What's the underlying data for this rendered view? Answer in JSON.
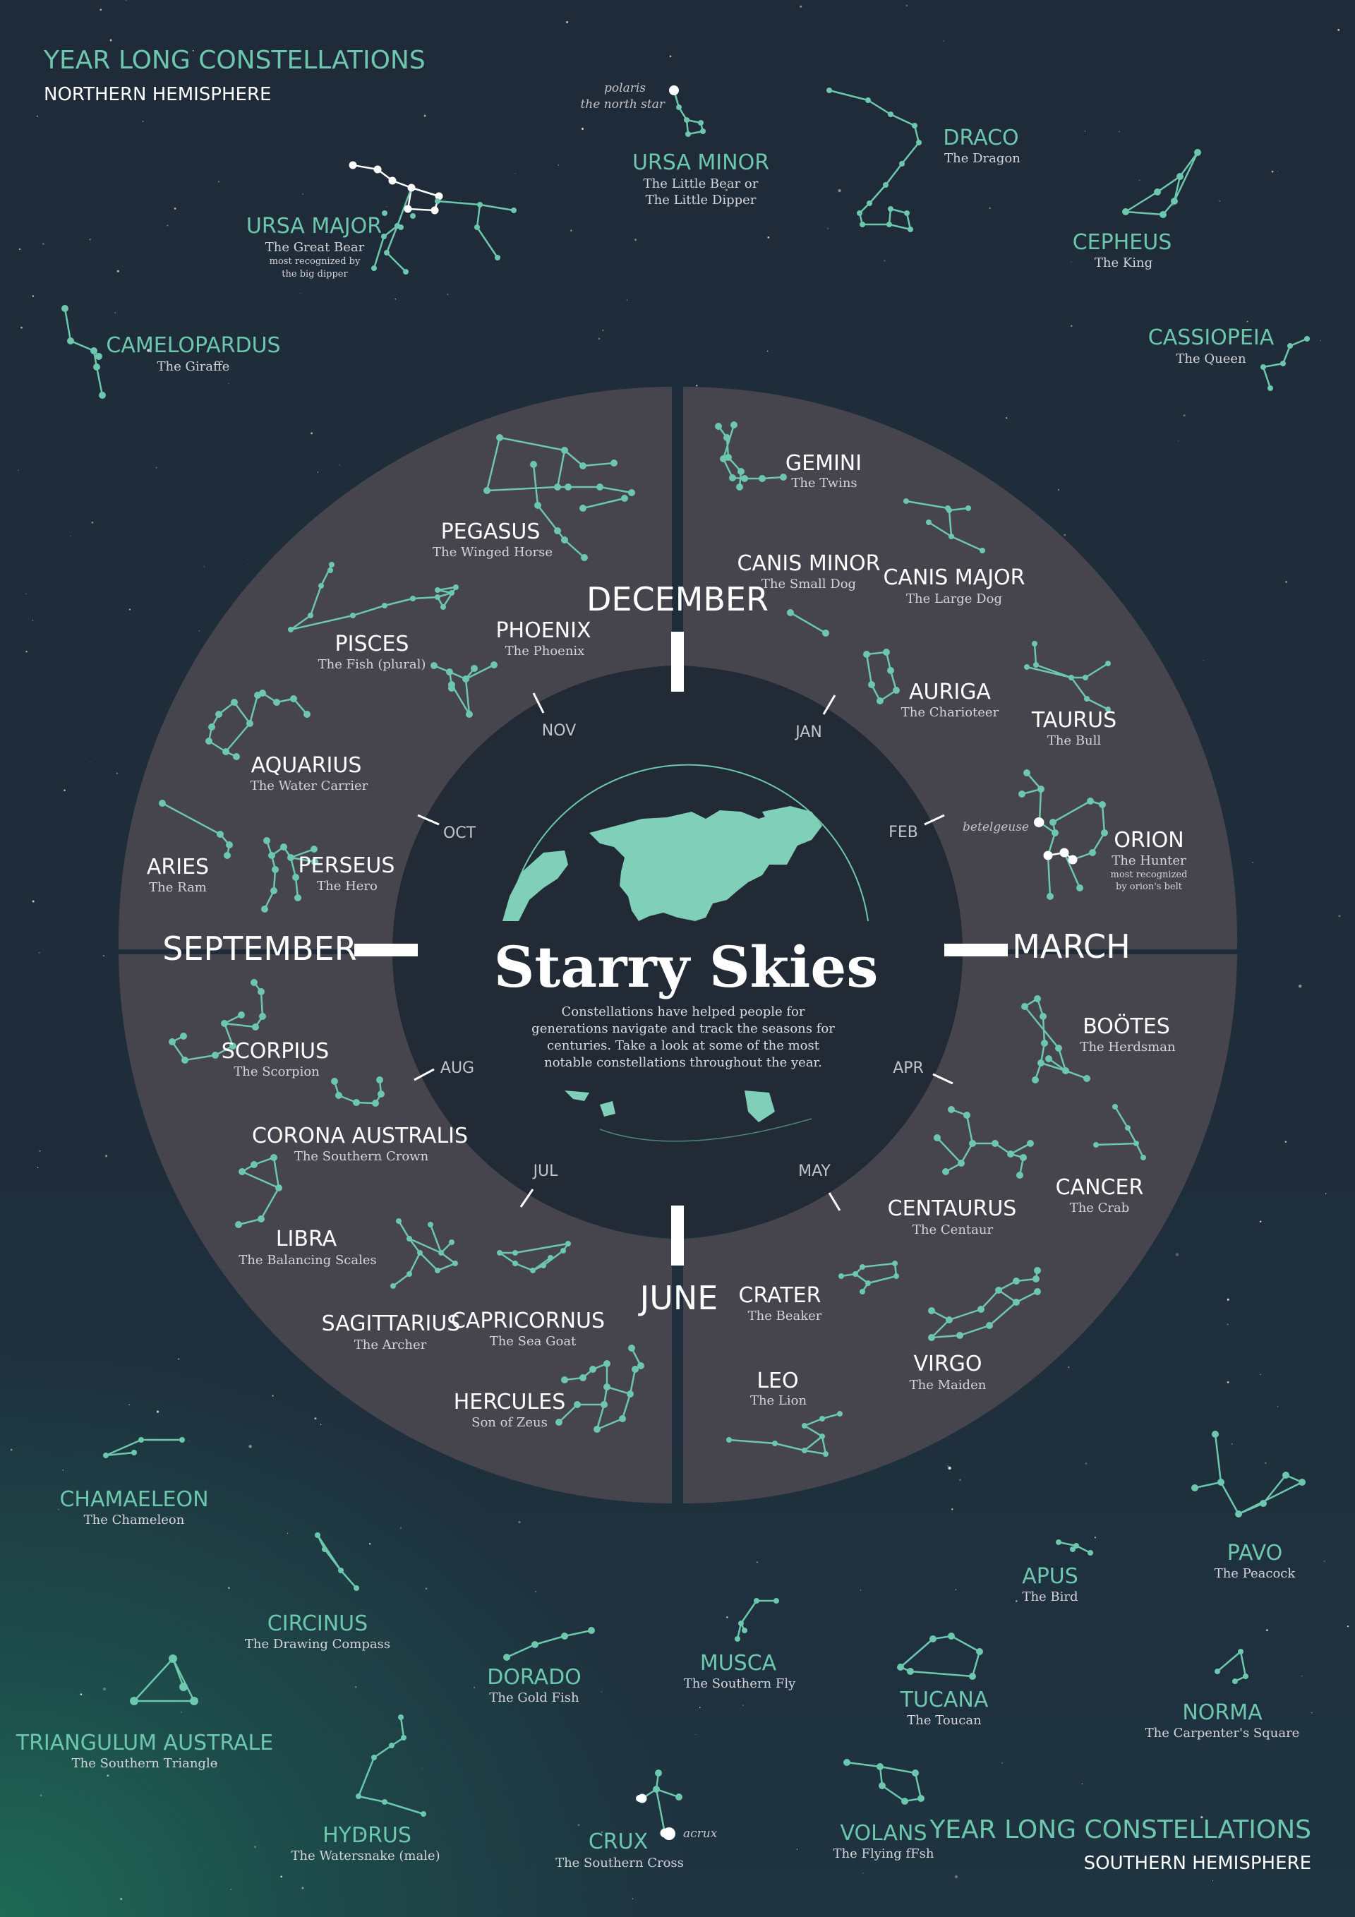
{
  "colors": {
    "accent": "#6cc7ad",
    "ring": "#46444d",
    "center": "#222a36",
    "title": "#ffffff",
    "subtitle": "#d4d4d8",
    "highlight_star": "#ffffff"
  },
  "header": {
    "north_title": "YEAR LONG CONSTELLATIONS",
    "north_sub": "NORTHERN HEMISPHERE",
    "south_title": "YEAR LONG CONSTELLATIONS",
    "south_sub": "SOUTHERN HEMISPHERE"
  },
  "center": {
    "title": "Starry Skies",
    "body": [
      "Constellations have helped people for",
      "generations navigate and track the seasons for",
      "centuries. Take a look at some of the most",
      "notable constellations throughout the year."
    ]
  },
  "quarters": {
    "december": "DECEMBER",
    "march": "MARCH",
    "june": "JUNE",
    "september": "SEPTEMBER"
  },
  "months": {
    "jan": "JAN",
    "feb": "FEB",
    "apr": "APR",
    "may": "MAY",
    "jul": "JUL",
    "aug": "AUG",
    "oct": "OCT",
    "nov": "NOV"
  },
  "star_notes": {
    "polaris_1": "polaris",
    "polaris_2": "the north star",
    "betelgeuse": "betelgeuse",
    "acrux": "acrux"
  },
  "north_constellations": {
    "ursa_minor": {
      "name": "URSA MINOR",
      "desc_1": "The Little Bear or",
      "desc_2": "The Little Dipper"
    },
    "draco": {
      "name": "DRACO",
      "desc_1": "The Dragon"
    },
    "ursa_major": {
      "name": "URSA MAJOR",
      "desc_1": "The Great Bear",
      "desc_2": "most recognized by",
      "desc_3": "the big dipper"
    },
    "cepheus": {
      "name": "CEPHEUS",
      "desc_1": "The King"
    },
    "camelopardus": {
      "name": "CAMELOPARDUS",
      "desc_1": "The Giraffe"
    },
    "cassiopeia": {
      "name": "CASSIOPEIA",
      "desc_1": "The Queen"
    }
  },
  "ring_constellations": {
    "gemini": {
      "name": "GEMINI",
      "desc_1": "The Twins"
    },
    "pegasus": {
      "name": "PEGASUS",
      "desc_1": "The Winged Horse"
    },
    "canis_minor": {
      "name": "CANIS MINOR",
      "desc_1": "The Small Dog"
    },
    "canis_major": {
      "name": "CANIS MAJOR",
      "desc_1": "The Large Dog"
    },
    "pisces": {
      "name": "PISCES",
      "desc_1": "The Fish (plural)"
    },
    "phoenix": {
      "name": "PHOENIX",
      "desc_1": "The Phoenix"
    },
    "auriga": {
      "name": "AURIGA",
      "desc_1": "The Charioteer"
    },
    "taurus": {
      "name": "TAURUS",
      "desc_1": "The Bull"
    },
    "aquarius": {
      "name": "AQUARIUS",
      "desc_1": "The Water Carrier"
    },
    "aries": {
      "name": "ARIES",
      "desc_1": "The Ram"
    },
    "perseus": {
      "name": "PERSEUS",
      "desc_1": "The Hero"
    },
    "orion": {
      "name": "ORION",
      "desc_1": "The Hunter",
      "desc_2": "most recognized",
      "desc_3": "by orion's belt"
    },
    "bootes": {
      "name": "BOÖTES",
      "desc_1": "The Herdsman"
    },
    "scorpius": {
      "name": "SCORPIUS",
      "desc_1": "The Scorpion"
    },
    "corona_australis": {
      "name": "CORONA AUSTRALIS",
      "desc_1": "The Southern Crown"
    },
    "cancer": {
      "name": "CANCER",
      "desc_1": "The Crab"
    },
    "centaurus": {
      "name": "CENTAURUS",
      "desc_1": "The Centaur"
    },
    "libra": {
      "name": "LIBRA",
      "desc_1": "The Balancing Scales"
    },
    "crater": {
      "name": "CRATER",
      "desc_1": "The Beaker"
    },
    "sagittarius": {
      "name": "SAGITTARIUS",
      "desc_1": "The Archer"
    },
    "capricornus": {
      "name": "CAPRICORNUS",
      "desc_1": "The Sea Goat"
    },
    "virgo": {
      "name": "VIRGO",
      "desc_1": "The Maiden"
    },
    "hercules": {
      "name": "HERCULES",
      "desc_1": "Son of Zeus"
    },
    "leo": {
      "name": "LEO",
      "desc_1": "The Lion"
    }
  },
  "south_constellations": {
    "chamaeleon": {
      "name": "CHAMAELEON",
      "desc_1": "The Chameleon"
    },
    "pavo": {
      "name": "PAVO",
      "desc_1": "The Peacock"
    },
    "apus": {
      "name": "APUS",
      "desc_1": "The Bird"
    },
    "circinus": {
      "name": "CIRCINUS",
      "desc_1": "The Drawing Compass"
    },
    "musca": {
      "name": "MUSCA",
      "desc_1": "The Southern Fly"
    },
    "dorado": {
      "name": "DORADO",
      "desc_1": "The Gold Fish"
    },
    "tucana": {
      "name": "TUCANA",
      "desc_1": "The Toucan"
    },
    "norma": {
      "name": "NORMA",
      "desc_1": "The Carpenter's Square"
    },
    "triangulum_australe": {
      "name": "TRIANGULUM AUSTRALE",
      "desc_1": "The Southern Triangle"
    },
    "hydrus": {
      "name": "HYDRUS",
      "desc_1": "The Watersnake (male)"
    },
    "crux": {
      "name": "CRUX",
      "desc_1": "The Southern Cross"
    },
    "volans": {
      "name": "VOLANS",
      "desc_1": "The Flying fFsh"
    }
  }
}
